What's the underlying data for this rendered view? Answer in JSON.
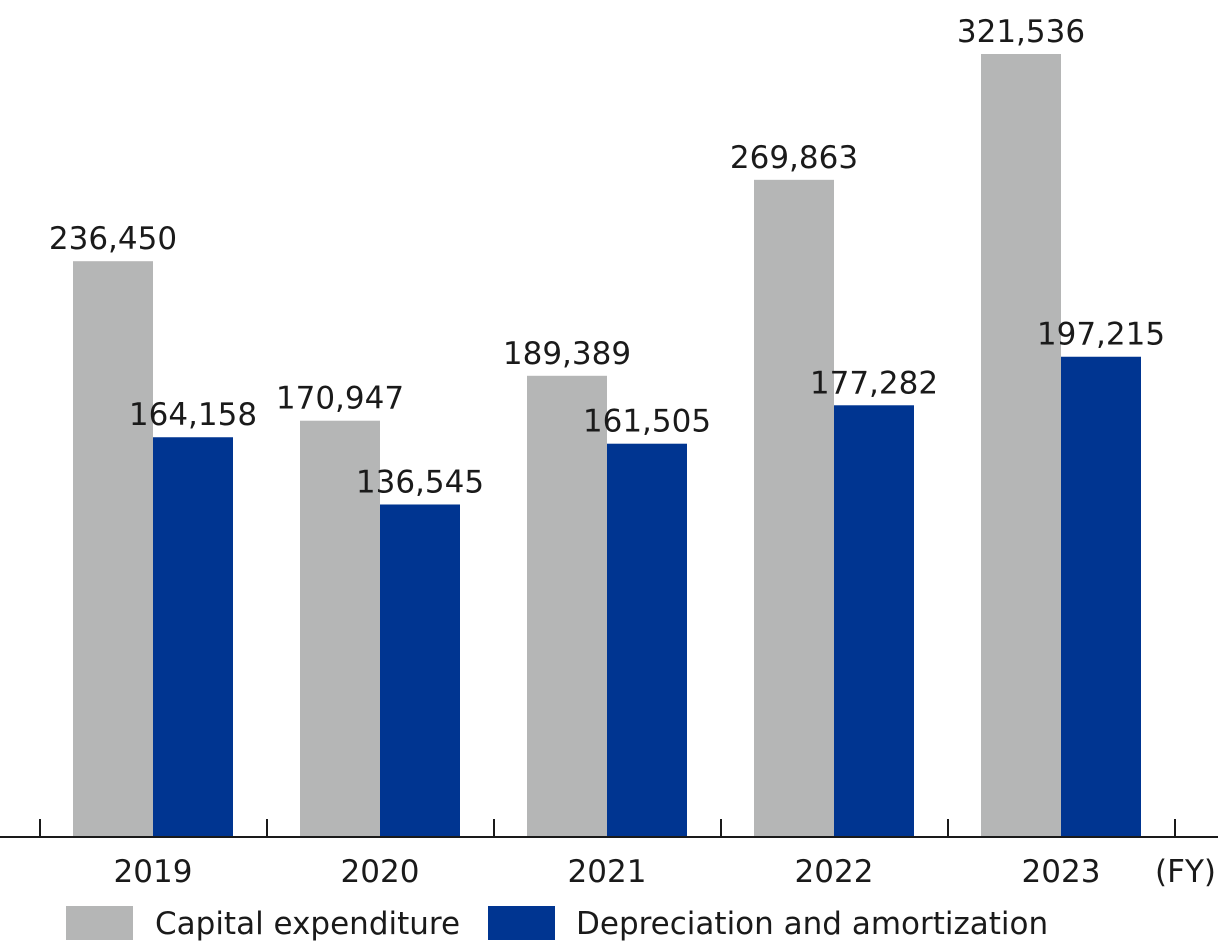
{
  "chart_data": {
    "type": "bar",
    "categories": [
      "2019",
      "2020",
      "2021",
      "2022",
      "2023"
    ],
    "x_unit_label": "(FY)",
    "series": [
      {
        "name": "Capital expenditure",
        "color": "#b5b6b6",
        "values": [
          236450,
          170947,
          189389,
          269863,
          321536
        ],
        "labels": [
          "236,450",
          "170,947",
          "189,389",
          "269,863",
          "321,536"
        ]
      },
      {
        "name": "Depreciation and amortization",
        "color": "#003591",
        "values": [
          164158,
          136545,
          161505,
          177282,
          197215
        ],
        "labels": [
          "164,158",
          "136,545",
          "161,505",
          "177,282",
          "197,215"
        ]
      }
    ],
    "ylim": [
      0,
      321536
    ],
    "grid": false,
    "legend_position": "bottom"
  }
}
